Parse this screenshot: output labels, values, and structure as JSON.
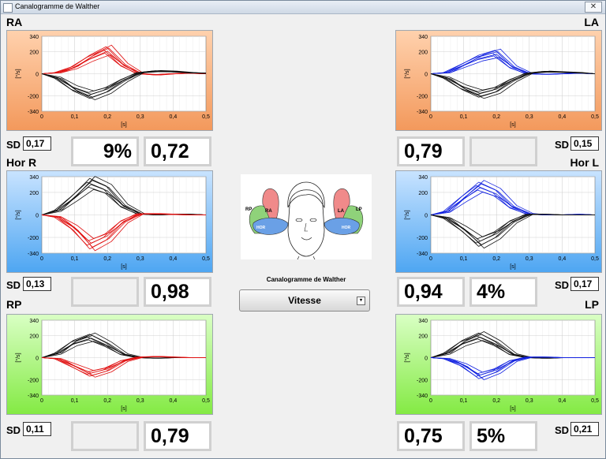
{
  "window": {
    "title": "Canalogramme de Walther",
    "close_label": "✕"
  },
  "axis": {
    "y_ticks": [
      "340",
      "200",
      "0",
      "-200",
      "-340"
    ],
    "x_ticks": [
      "0",
      "0,1",
      "0,2",
      "0,3",
      "0,4",
      "0,5"
    ],
    "ylabel": "[°/s]",
    "xlabel": "[s]"
  },
  "canals": {
    "ra": {
      "title": "RA",
      "sd": "0,17",
      "percent": "9%",
      "gain": "0,72"
    },
    "la": {
      "title": "LA",
      "sd": "0,15",
      "percent": "",
      "gain": "0,79"
    },
    "horr": {
      "title": "Hor R",
      "sd": "0,13",
      "percent": "",
      "gain": "0,98"
    },
    "horl": {
      "title": "Hor L",
      "sd": "0,17",
      "percent": "4%",
      "gain": "0,94"
    },
    "rp": {
      "title": "RP",
      "sd": "0,11",
      "percent": "",
      "gain": "0,79"
    },
    "lp": {
      "title": "LP",
      "sd": "0,21",
      "percent": "5%",
      "gain": "0,75"
    }
  },
  "sd_label": "SD",
  "center": {
    "image_labels": {
      "rp": "RP",
      "ra": "RA",
      "hor_left": "HOR",
      "la": "LA",
      "lp": "LP",
      "hor_right": "HOR"
    },
    "caption": "Canalogramme de Walther",
    "select_value": "Vitesse",
    "select_arrow": "▾"
  },
  "colors": {
    "black_trace": "#111111",
    "red_trace": "#e01010",
    "blue_trace": "#1020e0"
  },
  "chart_data": [
    {
      "name": "RA",
      "type": "line",
      "xlim": [
        0,
        0.5
      ],
      "ylim": [
        -340,
        340
      ],
      "series": [
        {
          "color": "red",
          "x": [
            0,
            0.05,
            0.1,
            0.15,
            0.2,
            0.25,
            0.3,
            0.35,
            0.4,
            0.45,
            0.5
          ],
          "y": [
            0,
            10,
            60,
            150,
            220,
            80,
            0,
            -10,
            0,
            5,
            0
          ]
        },
        {
          "color": "black",
          "x": [
            0,
            0.05,
            0.1,
            0.15,
            0.2,
            0.25,
            0.3,
            0.35,
            0.4,
            0.45,
            0.5
          ],
          "y": [
            0,
            -40,
            -140,
            -200,
            -150,
            -60,
            10,
            25,
            20,
            10,
            5
          ]
        }
      ]
    },
    {
      "name": "LA",
      "type": "line",
      "xlim": [
        0,
        0.5
      ],
      "ylim": [
        -340,
        340
      ],
      "series": [
        {
          "color": "blue",
          "x": [
            0,
            0.05,
            0.1,
            0.15,
            0.2,
            0.25,
            0.3,
            0.35,
            0.4,
            0.45,
            0.5
          ],
          "y": [
            0,
            10,
            80,
            150,
            190,
            60,
            0,
            -5,
            0,
            5,
            0
          ]
        },
        {
          "color": "black",
          "x": [
            0,
            0.05,
            0.1,
            0.15,
            0.2,
            0.25,
            0.3,
            0.35,
            0.4,
            0.45,
            0.5
          ],
          "y": [
            0,
            -40,
            -130,
            -190,
            -150,
            -60,
            5,
            20,
            15,
            10,
            0
          ]
        }
      ]
    },
    {
      "name": "Hor R",
      "type": "line",
      "xlim": [
        0,
        0.5
      ],
      "ylim": [
        -340,
        340
      ],
      "series": [
        {
          "color": "black",
          "x": [
            0,
            0.05,
            0.1,
            0.15,
            0.2,
            0.25,
            0.3,
            0.35,
            0.4,
            0.45,
            0.5
          ],
          "y": [
            0,
            40,
            160,
            290,
            230,
            80,
            10,
            0,
            5,
            5,
            0
          ]
        },
        {
          "color": "red",
          "x": [
            0,
            0.05,
            0.1,
            0.15,
            0.2,
            0.25,
            0.3,
            0.35,
            0.4,
            0.45,
            0.5
          ],
          "y": [
            0,
            -20,
            -120,
            -270,
            -200,
            -60,
            10,
            10,
            5,
            0,
            0
          ]
        }
      ]
    },
    {
      "name": "Hor L",
      "type": "line",
      "xlim": [
        0,
        0.5
      ],
      "ylim": [
        -340,
        340
      ],
      "series": [
        {
          "color": "blue",
          "x": [
            0,
            0.05,
            0.1,
            0.15,
            0.2,
            0.25,
            0.3,
            0.35,
            0.4,
            0.45,
            0.5
          ],
          "y": [
            0,
            30,
            150,
            260,
            200,
            70,
            10,
            0,
            0,
            5,
            0
          ]
        },
        {
          "color": "black",
          "x": [
            0,
            0.05,
            0.1,
            0.15,
            0.2,
            0.25,
            0.3,
            0.35,
            0.4,
            0.45,
            0.5
          ],
          "y": [
            0,
            -30,
            -130,
            -250,
            -180,
            -60,
            5,
            5,
            0,
            0,
            0
          ]
        }
      ]
    },
    {
      "name": "RP",
      "type": "line",
      "xlim": [
        0,
        0.5
      ],
      "ylim": [
        -340,
        340
      ],
      "series": [
        {
          "color": "black",
          "x": [
            0,
            0.05,
            0.1,
            0.15,
            0.2,
            0.25,
            0.3,
            0.35,
            0.4,
            0.45,
            0.5
          ],
          "y": [
            0,
            40,
            140,
            190,
            120,
            30,
            0,
            -5,
            0,
            0,
            0
          ]
        },
        {
          "color": "red",
          "x": [
            0,
            0.05,
            0.1,
            0.15,
            0.2,
            0.25,
            0.3,
            0.35,
            0.4,
            0.45,
            0.5
          ],
          "y": [
            0,
            -10,
            -80,
            -150,
            -110,
            -30,
            5,
            10,
            5,
            0,
            0
          ]
        }
      ]
    },
    {
      "name": "LP",
      "type": "line",
      "xlim": [
        0,
        0.5
      ],
      "ylim": [
        -340,
        340
      ],
      "series": [
        {
          "color": "black",
          "x": [
            0,
            0.05,
            0.1,
            0.15,
            0.2,
            0.25,
            0.3,
            0.35,
            0.4,
            0.45,
            0.5
          ],
          "y": [
            0,
            40,
            140,
            200,
            130,
            30,
            0,
            -5,
            0,
            0,
            0
          ]
        },
        {
          "color": "blue",
          "x": [
            0,
            0.05,
            0.1,
            0.15,
            0.2,
            0.25,
            0.3,
            0.35,
            0.4,
            0.45,
            0.5
          ],
          "y": [
            0,
            -10,
            -70,
            -170,
            -120,
            -30,
            5,
            5,
            0,
            0,
            0
          ]
        }
      ]
    }
  ]
}
